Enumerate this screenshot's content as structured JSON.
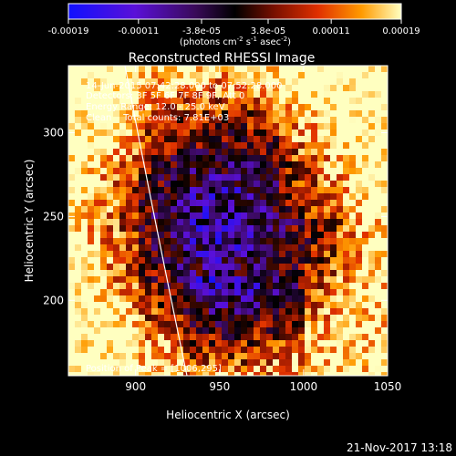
{
  "chart_data": {
    "type": "heatmap",
    "title": "Reconstructed RHESSI Image",
    "xlabel": "Heliocentric X (arcsec)",
    "ylabel": "Heliocentric Y (arcsec)",
    "xlim": [
      860,
      1050
    ],
    "ylim": [
      155,
      340
    ],
    "x_ticks": [
      900,
      950,
      1000,
      1050
    ],
    "y_ticks": [
      200,
      250,
      300
    ],
    "colorbar": {
      "ticks": [
        "-0.00019",
        "-0.00011",
        "-3.8e-05",
        "3.8e-05",
        "0.00011",
        "0.00019"
      ],
      "unit_label": "(photons cm-2 s-1 asec-2)",
      "range": [
        -0.00019,
        0.00019
      ],
      "colormap": [
        "#1010ff",
        "#5a10d8",
        "#3a0a5a",
        "#000000",
        "#7a1000",
        "#e03000",
        "#ff9a00",
        "#ffffc0"
      ]
    },
    "annotations": {
      "time_range": "14-Jun-2015 07:42:28.000 to 07:52:28.000",
      "detectors": "Detectors: 3F 5F 6F 7F 8F 9F, Att 0",
      "energy_range": "Energy Range: 12.0 - 25.0 keV",
      "clean_counts": "Clean    Total counts: 7.81E+03",
      "peak_position": "Position of Peak = [1006,295]"
    },
    "limb": "white solar limb curve",
    "grid": false
  },
  "footer": {
    "date": "21-Nov-2017 13:18"
  }
}
